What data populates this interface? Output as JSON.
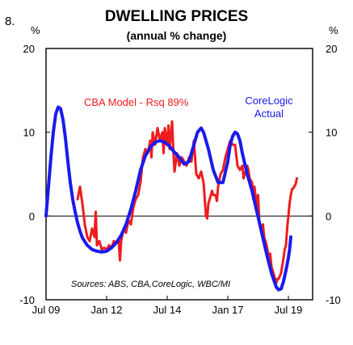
{
  "figure_number": "8.",
  "chart_data": {
    "type": "line",
    "title": "DWELLING PRICES",
    "subtitle": "(annual % change)",
    "yunit_left": "%",
    "yunit_right": "%",
    "ylim": [
      -10,
      20
    ],
    "yticks": [
      -10,
      0,
      10,
      20
    ],
    "xlim": [
      2009.5,
      2020.5
    ],
    "xticks": [
      {
        "pos": 2009.5,
        "label": "Jul 09"
      },
      {
        "pos": 2012.0,
        "label": "Jan 12"
      },
      {
        "pos": 2014.5,
        "label": "Jul 14"
      },
      {
        "pos": 2017.0,
        "label": "Jan 17"
      },
      {
        "pos": 2019.5,
        "label": "Jul 19"
      }
    ],
    "grid": false,
    "annotations": {
      "model_label": "CBA Model - Rsq 89%",
      "actual_label_line1": "CoreLogic",
      "actual_label_line2": "Actual",
      "source": "Sources: ABS, CBA,CoreLogic, WBC/MI"
    },
    "colors": {
      "model": "#ee1c1c",
      "actual": "#1a1aee"
    },
    "series": [
      {
        "key": "model",
        "points": [
          [
            2010.8,
            2.0
          ],
          [
            2010.9,
            3.5
          ],
          [
            2011.0,
            1.5
          ],
          [
            2011.1,
            -1.0
          ],
          [
            2011.2,
            -2.5
          ],
          [
            2011.3,
            -3.0
          ],
          [
            2011.4,
            -1.5
          ],
          [
            2011.5,
            -2.5
          ],
          [
            2011.55,
            0.5
          ],
          [
            2011.6,
            -3.5
          ],
          [
            2011.7,
            -3.0
          ],
          [
            2011.8,
            -4.0
          ],
          [
            2011.9,
            -3.8
          ],
          [
            2012.0,
            -4.0
          ],
          [
            2012.1,
            -3.5
          ],
          [
            2012.2,
            -3.8
          ],
          [
            2012.3,
            -3.0
          ],
          [
            2012.4,
            -3.2
          ],
          [
            2012.5,
            -3.0
          ],
          [
            2012.55,
            -5.3
          ],
          [
            2012.6,
            -3.0
          ],
          [
            2012.7,
            -1.5
          ],
          [
            2012.8,
            -2.0
          ],
          [
            2012.9,
            -0.5
          ],
          [
            2013.0,
            -1.0
          ],
          [
            2013.1,
            1.0
          ],
          [
            2013.2,
            2.0
          ],
          [
            2013.3,
            2.5
          ],
          [
            2013.4,
            4.0
          ],
          [
            2013.5,
            7.0
          ],
          [
            2013.6,
            8.0
          ],
          [
            2013.7,
            7.5
          ],
          [
            2013.8,
            9.0
          ],
          [
            2013.85,
            7.0
          ],
          [
            2013.9,
            10.0
          ],
          [
            2014.0,
            8.5
          ],
          [
            2014.1,
            10.5
          ],
          [
            2014.2,
            9.0
          ],
          [
            2014.3,
            10.0
          ],
          [
            2014.35,
            7.5
          ],
          [
            2014.4,
            10.5
          ],
          [
            2014.5,
            8.5
          ],
          [
            2014.55,
            10.8
          ],
          [
            2014.6,
            8.0
          ],
          [
            2014.7,
            11.3
          ],
          [
            2014.75,
            8.0
          ],
          [
            2014.8,
            5.3
          ],
          [
            2014.9,
            7.5
          ],
          [
            2015.0,
            6.0
          ],
          [
            2015.1,
            7.0
          ],
          [
            2015.2,
            6.5
          ],
          [
            2015.3,
            6.0
          ],
          [
            2015.4,
            7.0
          ],
          [
            2015.5,
            6.5
          ],
          [
            2015.6,
            9.0
          ],
          [
            2015.7,
            5.0
          ],
          [
            2015.8,
            4.5
          ],
          [
            2015.9,
            5.3
          ],
          [
            2016.0,
            4.0
          ],
          [
            2016.05,
            2.0
          ],
          [
            2016.1,
            0.0
          ],
          [
            2016.15,
            -0.3
          ],
          [
            2016.2,
            1.5
          ],
          [
            2016.3,
            2.5
          ],
          [
            2016.35,
            3.0
          ],
          [
            2016.4,
            2.5
          ],
          [
            2016.5,
            2.5
          ],
          [
            2016.55,
            1.8
          ],
          [
            2016.6,
            3.5
          ],
          [
            2016.7,
            5.0
          ],
          [
            2016.8,
            5.5
          ],
          [
            2016.9,
            7.0
          ],
          [
            2017.0,
            8.0
          ],
          [
            2017.1,
            9.0
          ],
          [
            2017.2,
            8.5
          ],
          [
            2017.3,
            8.5
          ],
          [
            2017.4,
            6.0
          ],
          [
            2017.5,
            5.5
          ],
          [
            2017.6,
            6.0
          ],
          [
            2017.65,
            4.5
          ],
          [
            2017.7,
            5.0
          ],
          [
            2017.8,
            6.0
          ],
          [
            2017.85,
            5.5
          ],
          [
            2017.9,
            4.5
          ],
          [
            2018.0,
            4.0
          ],
          [
            2018.05,
            2.0
          ],
          [
            2018.1,
            3.5
          ],
          [
            2018.2,
            1.0
          ],
          [
            2018.25,
            2.5
          ],
          [
            2018.3,
            -0.5
          ],
          [
            2018.4,
            -2.0
          ],
          [
            2018.45,
            -1.0
          ],
          [
            2018.5,
            -2.5
          ],
          [
            2018.6,
            -3.5
          ],
          [
            2018.7,
            -5.0
          ],
          [
            2018.75,
            -4.5
          ],
          [
            2018.8,
            -6.0
          ],
          [
            2018.9,
            -7.0
          ],
          [
            2019.0,
            -8.0
          ],
          [
            2019.05,
            -7.5
          ],
          [
            2019.1,
            -7.5
          ],
          [
            2019.2,
            -6.8
          ],
          [
            2019.3,
            -5.0
          ],
          [
            2019.35,
            -4.0
          ],
          [
            2019.4,
            -3.5
          ],
          [
            2019.45,
            -1.5
          ],
          [
            2019.5,
            0.0
          ],
          [
            2019.55,
            1.5
          ],
          [
            2019.6,
            2.5
          ],
          [
            2019.65,
            3.2
          ],
          [
            2019.7,
            3.3
          ],
          [
            2019.8,
            3.8
          ],
          [
            2019.85,
            4.5
          ]
        ]
      },
      {
        "key": "actual",
        "points": [
          [
            2009.5,
            0.0
          ],
          [
            2009.6,
            3.5
          ],
          [
            2009.7,
            7.0
          ],
          [
            2009.8,
            10.0
          ],
          [
            2009.9,
            12.2
          ],
          [
            2010.0,
            13.0
          ],
          [
            2010.1,
            12.8
          ],
          [
            2010.2,
            11.5
          ],
          [
            2010.3,
            9.3
          ],
          [
            2010.4,
            6.5
          ],
          [
            2010.5,
            4.0
          ],
          [
            2010.6,
            2.0
          ],
          [
            2010.7,
            0.5
          ],
          [
            2010.8,
            -0.8
          ],
          [
            2010.9,
            -1.8
          ],
          [
            2011.0,
            -2.6
          ],
          [
            2011.2,
            -3.5
          ],
          [
            2011.4,
            -4.0
          ],
          [
            2011.6,
            -4.2
          ],
          [
            2011.8,
            -4.3
          ],
          [
            2012.0,
            -4.2
          ],
          [
            2012.2,
            -3.8
          ],
          [
            2012.4,
            -3.2
          ],
          [
            2012.6,
            -2.3
          ],
          [
            2012.8,
            -1.0
          ],
          [
            2013.0,
            0.8
          ],
          [
            2013.2,
            3.0
          ],
          [
            2013.4,
            5.5
          ],
          [
            2013.6,
            7.2
          ],
          [
            2013.8,
            8.2
          ],
          [
            2014.0,
            8.8
          ],
          [
            2014.2,
            9.0
          ],
          [
            2014.4,
            8.8
          ],
          [
            2014.6,
            8.3
          ],
          [
            2014.8,
            7.6
          ],
          [
            2015.0,
            7.0
          ],
          [
            2015.2,
            6.2
          ],
          [
            2015.4,
            6.5
          ],
          [
            2015.6,
            8.5
          ],
          [
            2015.75,
            10.0
          ],
          [
            2015.9,
            10.5
          ],
          [
            2016.0,
            10.0
          ],
          [
            2016.2,
            8.0
          ],
          [
            2016.4,
            5.5
          ],
          [
            2016.6,
            4.0
          ],
          [
            2016.8,
            4.0
          ],
          [
            2017.0,
            6.5
          ],
          [
            2017.1,
            8.5
          ],
          [
            2017.2,
            9.5
          ],
          [
            2017.3,
            10.0
          ],
          [
            2017.4,
            9.8
          ],
          [
            2017.5,
            9.0
          ],
          [
            2017.6,
            7.5
          ],
          [
            2017.8,
            5.0
          ],
          [
            2018.0,
            3.0
          ],
          [
            2018.2,
            0.5
          ],
          [
            2018.4,
            -2.0
          ],
          [
            2018.6,
            -4.5
          ],
          [
            2018.8,
            -6.8
          ],
          [
            2019.0,
            -8.5
          ],
          [
            2019.1,
            -8.8
          ],
          [
            2019.2,
            -8.7
          ],
          [
            2019.3,
            -7.8
          ],
          [
            2019.4,
            -6.5
          ],
          [
            2019.5,
            -5.0
          ],
          [
            2019.55,
            -4.0
          ],
          [
            2019.6,
            -2.5
          ]
        ]
      }
    ]
  }
}
